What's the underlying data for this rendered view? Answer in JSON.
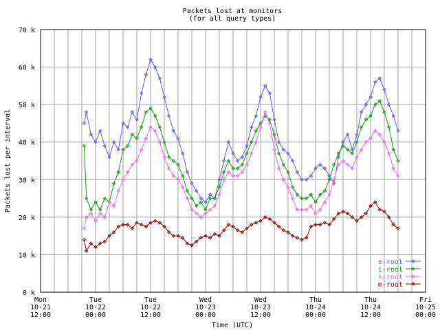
{
  "chart_data": {
    "type": "line",
    "title": "Packets lost at monitors",
    "subtitle": "(for all query types)",
    "xlabel": "Time (UTC)",
    "ylabel": "Packets lost per interval",
    "ylim": [
      0,
      70000
    ],
    "y_ticks": [
      {
        "value": 0,
        "label": "0 k"
      },
      {
        "value": 10000,
        "label": "10 k"
      },
      {
        "value": 20000,
        "label": "20 k"
      },
      {
        "value": 30000,
        "label": "30 k"
      },
      {
        "value": 40000,
        "label": "40 k"
      },
      {
        "value": 50000,
        "label": "50 k"
      },
      {
        "value": 60000,
        "label": "60 k"
      },
      {
        "value": 70000,
        "label": "70 k"
      }
    ],
    "x_unit": "hours since Mon 10-21 12:00 UTC",
    "xlim": [
      0,
      84
    ],
    "x_ticks": [
      {
        "value": 0,
        "lines": [
          "Mon",
          "10-21",
          "12:00"
        ]
      },
      {
        "value": 12,
        "lines": [
          "Tue",
          "10-22",
          "00:00"
        ]
      },
      {
        "value": 24,
        "lines": [
          "Tue",
          "10-22",
          "12:00"
        ]
      },
      {
        "value": 36,
        "lines": [
          "Wed",
          "10-23",
          "00:00"
        ]
      },
      {
        "value": 48,
        "lines": [
          "Wed",
          "10-23",
          "12:00"
        ]
      },
      {
        "value": 60,
        "lines": [
          "Thu",
          "10-24",
          "00:00"
        ]
      },
      {
        "value": 72,
        "lines": [
          "Thu",
          "10-24",
          "12:00"
        ]
      },
      {
        "value": 84,
        "lines": [
          "Fri",
          "10-25",
          "00:00"
        ]
      }
    ],
    "grid": true,
    "legend_position": "bottom-right",
    "series": [
      {
        "name": "e-root",
        "color": "#5a5aff",
        "x": [
          9.5,
          10,
          11,
          12,
          13,
          14,
          15,
          16,
          17,
          18,
          19,
          20,
          21,
          22,
          23,
          24,
          25,
          26,
          27,
          28,
          29,
          30,
          31,
          32,
          33,
          34,
          35,
          36,
          37,
          38,
          39,
          40,
          41,
          42,
          43,
          44,
          45,
          46,
          47,
          48,
          49,
          50,
          51,
          52,
          53,
          54,
          55,
          56,
          57,
          58,
          59,
          60,
          61,
          62,
          63,
          64,
          65,
          66,
          67,
          68,
          69,
          70,
          71,
          72,
          73,
          74,
          75,
          76,
          77,
          78
        ],
        "y": [
          45000,
          48000,
          42000,
          40000,
          43000,
          39000,
          36000,
          40000,
          38000,
          45000,
          44000,
          48000,
          46000,
          53000,
          58000,
          62000,
          60000,
          57000,
          52000,
          47000,
          43000,
          41000,
          37000,
          32000,
          29000,
          27000,
          25000,
          24000,
          26000,
          25000,
          30000,
          35000,
          40000,
          37000,
          35000,
          36000,
          39000,
          44000,
          47000,
          52000,
          55000,
          53000,
          46000,
          40000,
          38000,
          37000,
          35000,
          32000,
          30000,
          30000,
          31000,
          33000,
          34000,
          33000,
          31000,
          29000,
          36000,
          40000,
          42000,
          38000,
          42000,
          48000,
          50000,
          52000,
          56000,
          57000,
          54000,
          50000,
          47000,
          43000
        ]
      },
      {
        "name": "i-root",
        "color": "#139a13",
        "x": [
          9.5,
          10,
          11,
          12,
          13,
          14,
          15,
          16,
          17,
          18,
          19,
          20,
          21,
          22,
          23,
          24,
          25,
          26,
          27,
          28,
          29,
          30,
          31,
          32,
          33,
          34,
          35,
          36,
          37,
          38,
          39,
          40,
          41,
          42,
          43,
          44,
          45,
          46,
          47,
          48,
          49,
          50,
          51,
          52,
          53,
          54,
          55,
          56,
          57,
          58,
          59,
          60,
          61,
          62,
          63,
          64,
          65,
          66,
          67,
          68,
          69,
          70,
          71,
          72,
          73,
          74,
          75,
          76,
          77,
          78
        ],
        "y": [
          39000,
          25000,
          22000,
          24000,
          22000,
          25000,
          24000,
          29000,
          32000,
          38000,
          39000,
          42000,
          41000,
          44000,
          48000,
          49000,
          47000,
          44000,
          40000,
          36000,
          35000,
          34000,
          31000,
          27000,
          25000,
          23000,
          24000,
          22000,
          25000,
          25000,
          28000,
          32000,
          35000,
          33000,
          33000,
          34000,
          37000,
          40000,
          43000,
          45000,
          47000,
          46000,
          42000,
          37000,
          34000,
          32000,
          28000,
          26000,
          25000,
          25000,
          26000,
          24000,
          26000,
          27000,
          30000,
          34000,
          37000,
          39000,
          38000,
          37000,
          40000,
          44000,
          46000,
          47000,
          50000,
          51000,
          48000,
          44000,
          38000,
          35000
        ]
      },
      {
        "name": "k-root",
        "color": "#ee66ee",
        "x": [
          9.5,
          10,
          11,
          12,
          13,
          14,
          15,
          16,
          17,
          18,
          19,
          20,
          21,
          22,
          23,
          24,
          25,
          26,
          27,
          28,
          29,
          30,
          31,
          32,
          33,
          34,
          35,
          36,
          37,
          38,
          39,
          40,
          41,
          42,
          43,
          44,
          45,
          46,
          47,
          48,
          49,
          50,
          51,
          52,
          53,
          54,
          55,
          56,
          57,
          58,
          59,
          60,
          61,
          62,
          63,
          64,
          65,
          66,
          67,
          68,
          69,
          70,
          71,
          72,
          73,
          74,
          75,
          76,
          77,
          78
        ],
        "y": [
          17000,
          20000,
          21000,
          19000,
          21000,
          20000,
          24000,
          23000,
          27000,
          30000,
          32000,
          34000,
          35000,
          38000,
          41000,
          44000,
          43000,
          40000,
          36000,
          33000,
          31000,
          30000,
          28000,
          25000,
          22000,
          21000,
          20000,
          21000,
          22000,
          23000,
          26000,
          30000,
          32000,
          31000,
          31000,
          32000,
          34000,
          37000,
          40000,
          44000,
          48000,
          45000,
          38000,
          33000,
          30000,
          28000,
          25000,
          22000,
          22000,
          22000,
          23000,
          21000,
          22000,
          24000,
          26000,
          30000,
          34000,
          35000,
          34000,
          33000,
          36000,
          38000,
          40000,
          41000,
          43000,
          42000,
          40000,
          37000,
          33000,
          31000
        ]
      },
      {
        "name": "m-root",
        "color": "#990000",
        "x": [
          9.5,
          10,
          11,
          12,
          13,
          14,
          15,
          16,
          17,
          18,
          19,
          20,
          21,
          22,
          23,
          24,
          25,
          26,
          27,
          28,
          29,
          30,
          31,
          32,
          33,
          34,
          35,
          36,
          37,
          38,
          39,
          40,
          41,
          42,
          43,
          44,
          45,
          46,
          47,
          48,
          49,
          50,
          51,
          52,
          53,
          54,
          55,
          56,
          57,
          58,
          59,
          60,
          61,
          62,
          63,
          64,
          65,
          66,
          67,
          68,
          69,
          70,
          71,
          72,
          73,
          74,
          75,
          76,
          77,
          78
        ],
        "y": [
          14000,
          11000,
          13000,
          12000,
          13000,
          13500,
          15000,
          16000,
          17500,
          18000,
          18000,
          17000,
          18500,
          18000,
          17500,
          18500,
          19000,
          18500,
          17500,
          16000,
          15000,
          15000,
          14500,
          13000,
          12500,
          13500,
          14500,
          15000,
          14500,
          15500,
          15000,
          16500,
          18000,
          17500,
          16500,
          16000,
          17000,
          18000,
          18500,
          19000,
          20000,
          19500,
          18500,
          17500,
          16500,
          16000,
          15000,
          14500,
          14000,
          14500,
          17500,
          18000,
          18000,
          18500,
          18000,
          19500,
          21000,
          21500,
          21000,
          20000,
          19000,
          20000,
          21000,
          23000,
          24000,
          22000,
          21500,
          20000,
          18000,
          17000
        ]
      }
    ]
  }
}
